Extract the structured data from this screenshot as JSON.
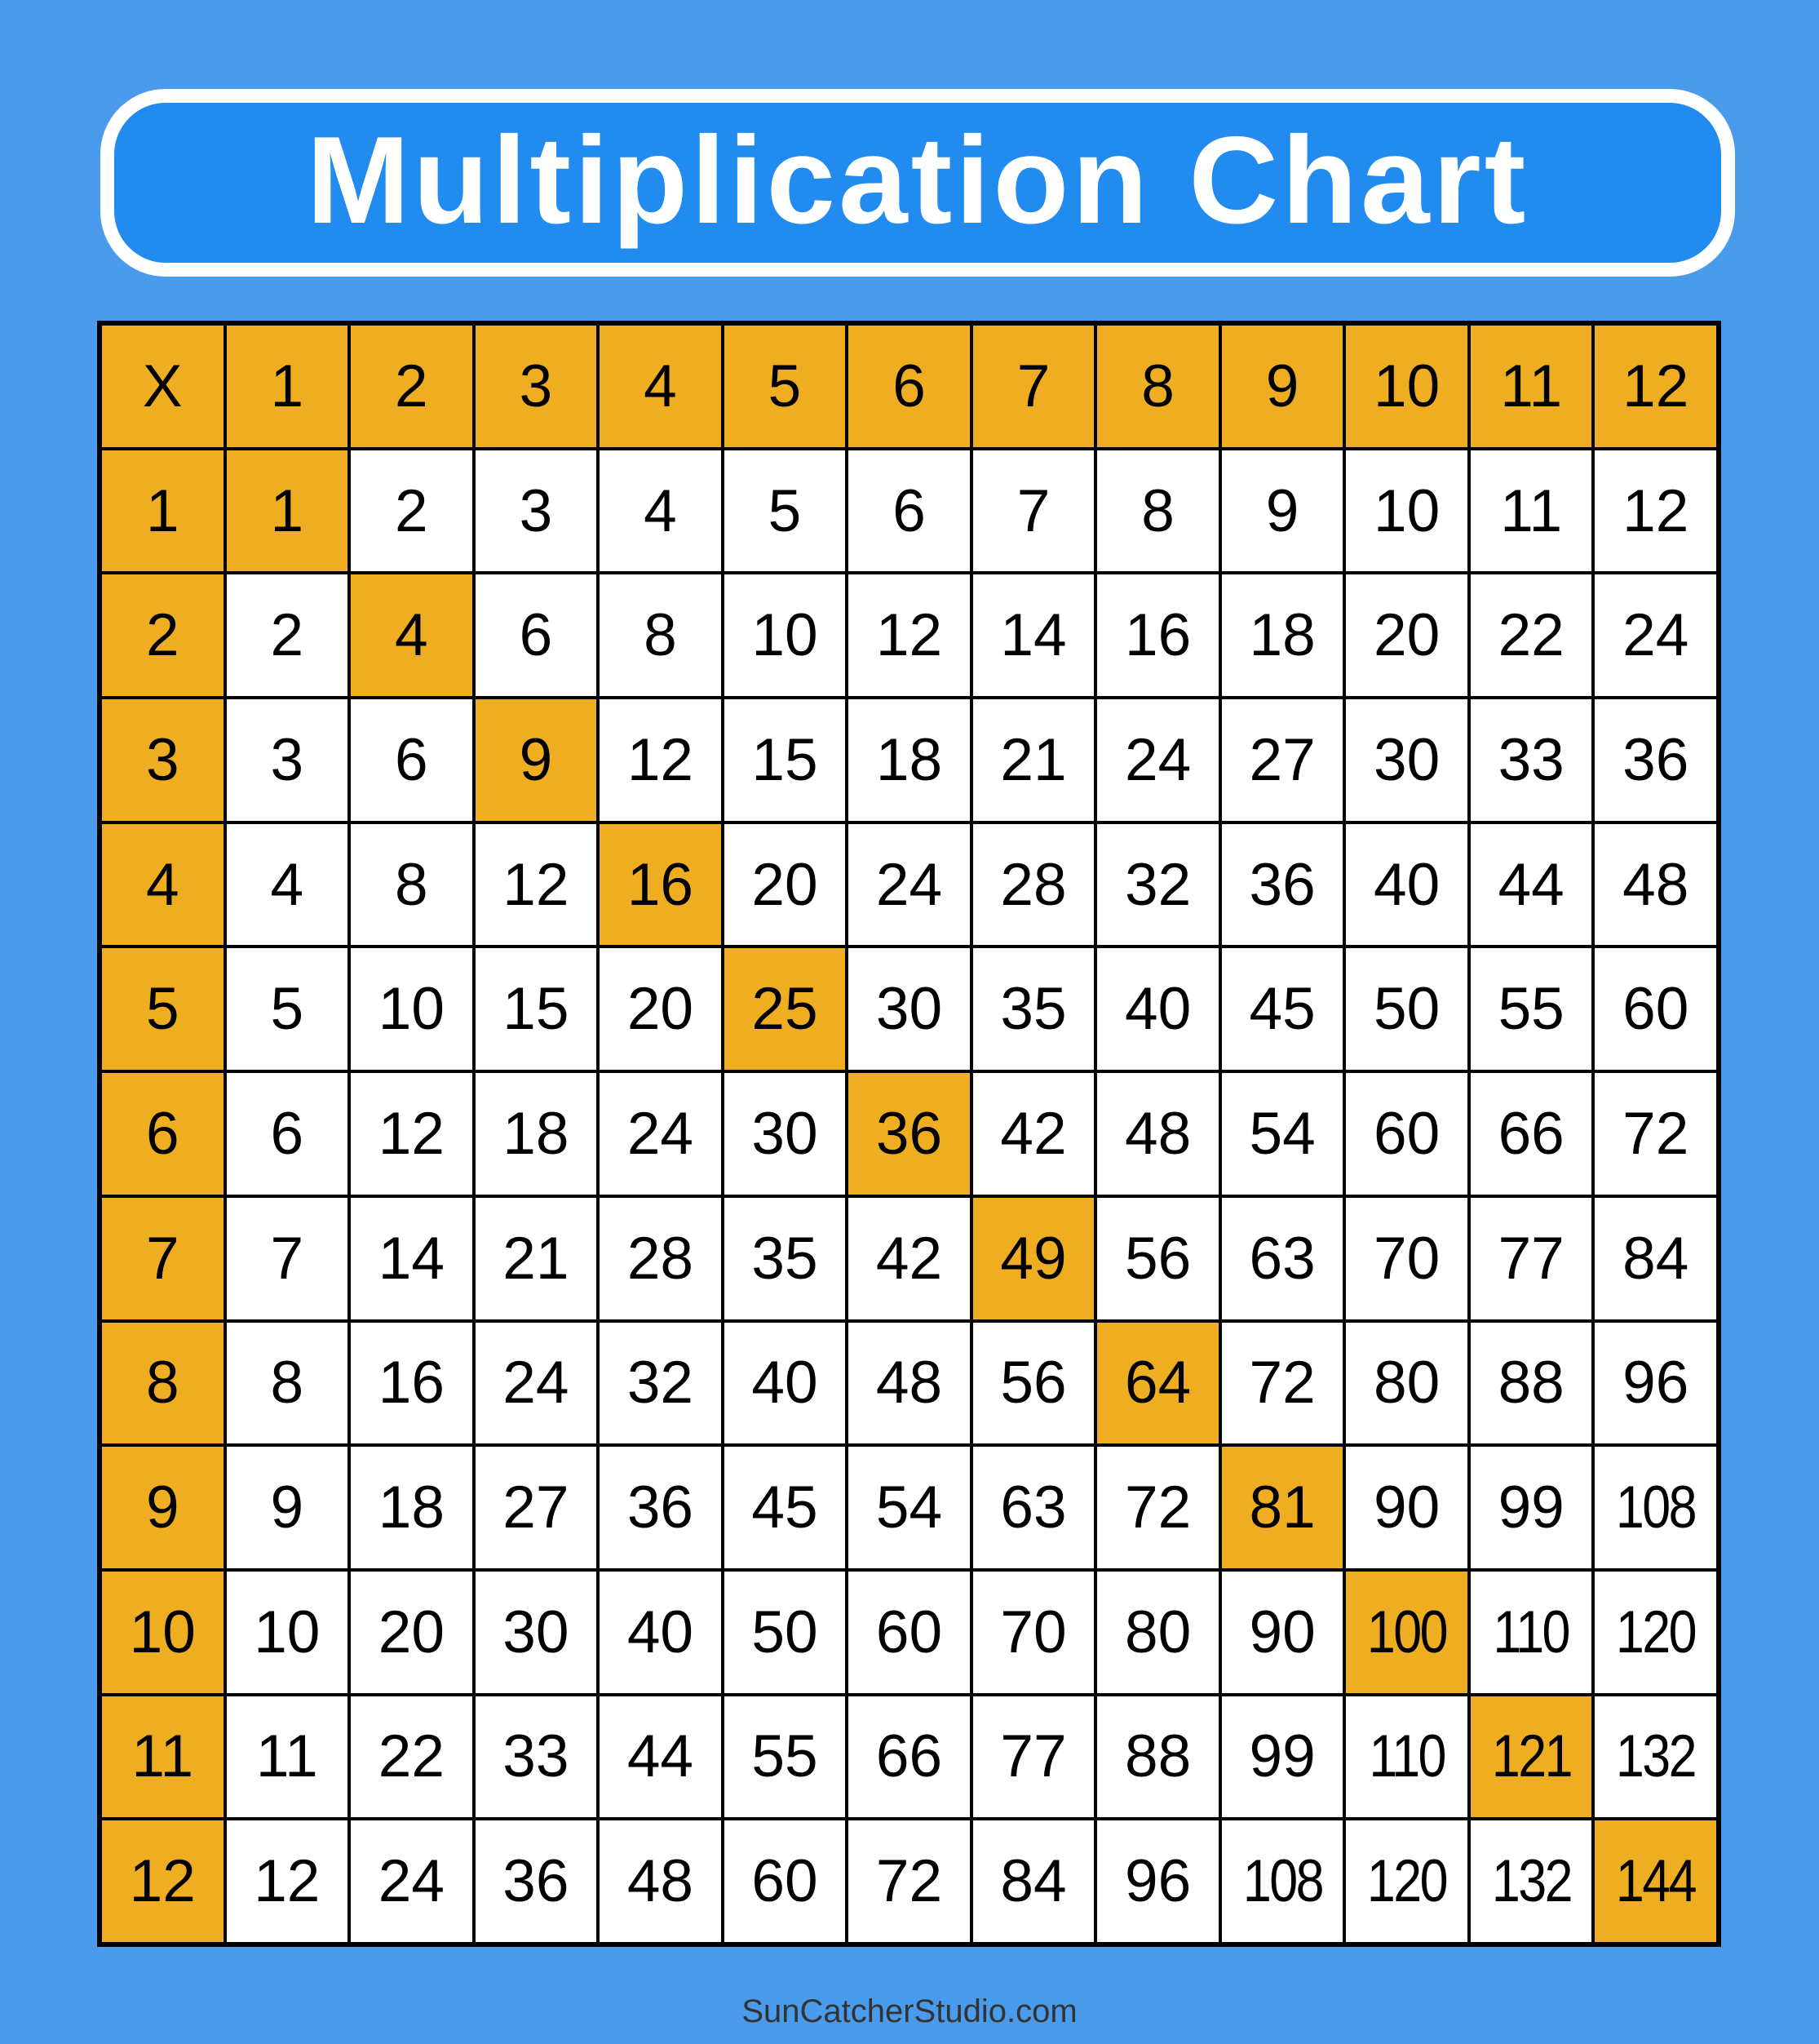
{
  "title": "Multiplication Chart",
  "footer": "SunCatcherStudio.com",
  "colors": {
    "background": "#4A9BEC",
    "title_box": "#218BEF",
    "highlight": "#EFAE22",
    "cell": "#FFFFFF"
  },
  "chart_data": {
    "type": "table",
    "title": "Multiplication Chart",
    "corner_label": "X",
    "column_headers": [
      "1",
      "2",
      "3",
      "4",
      "5",
      "6",
      "7",
      "8",
      "9",
      "10",
      "11",
      "12"
    ],
    "row_headers": [
      "1",
      "2",
      "3",
      "4",
      "5",
      "6",
      "7",
      "8",
      "9",
      "10",
      "11",
      "12"
    ],
    "rows": [
      [
        "1",
        "2",
        "3",
        "4",
        "5",
        "6",
        "7",
        "8",
        "9",
        "10",
        "11",
        "12"
      ],
      [
        "2",
        "4",
        "6",
        "8",
        "10",
        "12",
        "14",
        "16",
        "18",
        "20",
        "22",
        "24"
      ],
      [
        "3",
        "6",
        "9",
        "12",
        "15",
        "18",
        "21",
        "24",
        "27",
        "30",
        "33",
        "36"
      ],
      [
        "4",
        "8",
        "12",
        "16",
        "20",
        "24",
        "28",
        "32",
        "36",
        "40",
        "44",
        "48"
      ],
      [
        "5",
        "10",
        "15",
        "20",
        "25",
        "30",
        "35",
        "40",
        "45",
        "50",
        "55",
        "60"
      ],
      [
        "6",
        "12",
        "18",
        "24",
        "30",
        "36",
        "42",
        "48",
        "54",
        "60",
        "66",
        "72"
      ],
      [
        "7",
        "14",
        "21",
        "28",
        "35",
        "42",
        "49",
        "56",
        "63",
        "70",
        "77",
        "84"
      ],
      [
        "8",
        "16",
        "24",
        "32",
        "40",
        "48",
        "56",
        "64",
        "72",
        "80",
        "88",
        "96"
      ],
      [
        "9",
        "18",
        "27",
        "36",
        "45",
        "54",
        "63",
        "72",
        "81",
        "90",
        "99",
        "108"
      ],
      [
        "10",
        "20",
        "30",
        "40",
        "50",
        "60",
        "70",
        "80",
        "90",
        "100",
        "110",
        "120"
      ],
      [
        "11",
        "22",
        "33",
        "44",
        "55",
        "66",
        "77",
        "88",
        "99",
        "110",
        "121",
        "132"
      ],
      [
        "12",
        "24",
        "36",
        "48",
        "60",
        "72",
        "84",
        "96",
        "108",
        "120",
        "132",
        "144"
      ]
    ],
    "highlighted": "headers and diagonal (squares)"
  }
}
